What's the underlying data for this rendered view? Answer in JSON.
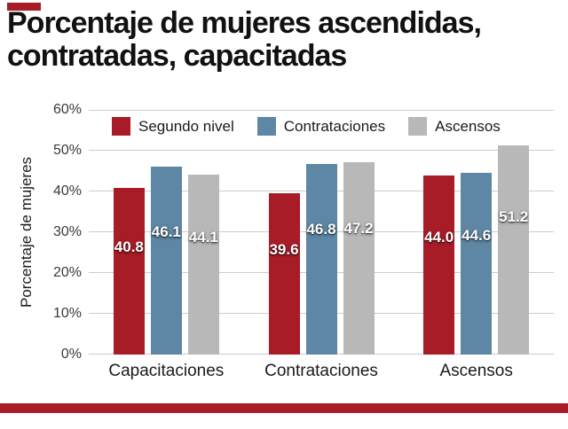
{
  "title": "Porcentaje de mujeres ascendidas,\ncontratadas, capacitadas",
  "colors": {
    "accent": "#a81c28",
    "background": "#ffffff",
    "gridline": "#cccccc"
  },
  "chart_data": {
    "type": "bar",
    "title": "Porcentaje de mujeres ascendidas, contratadas, capacitadas",
    "xlabel": "",
    "ylabel": "Porcentaje de mujeres",
    "ylim": [
      0,
      60
    ],
    "ytick_labels": [
      "0%",
      "10%",
      "20%",
      "30%",
      "40%",
      "50%",
      "60%"
    ],
    "grid": true,
    "legend_position": "top",
    "categories": [
      "Capacitaciones",
      "Contrataciones",
      "Ascensos"
    ],
    "series": [
      {
        "name": "Segundo nivel",
        "color": "#a81c28",
        "values": [
          40.8,
          39.6,
          44.0
        ]
      },
      {
        "name": "Contrataciones",
        "color": "#5d87a4",
        "values": [
          46.1,
          46.8,
          44.6
        ]
      },
      {
        "name": "Ascensos",
        "color": "#b8b8b8",
        "values": [
          44.1,
          47.2,
          51.2
        ]
      }
    ]
  }
}
